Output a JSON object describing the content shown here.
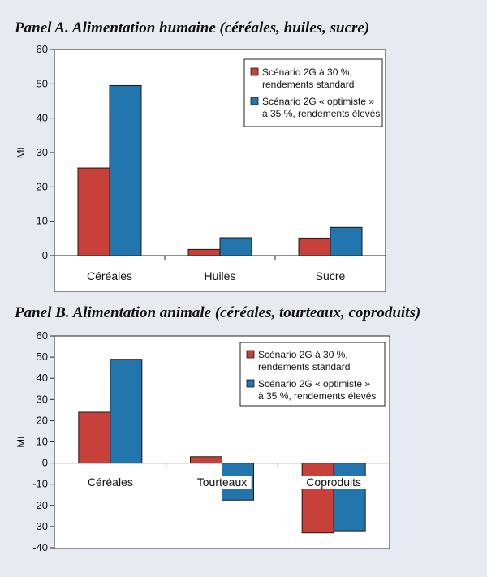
{
  "colors": {
    "series1": "#c8403a",
    "series2": "#2376ad",
    "background": "#e7eaf1"
  },
  "panels": [
    {
      "title": "Panel A. Alimentation humaine (céréales, huiles, sucre)",
      "chart_data": {
        "type": "bar",
        "categories": [
          "Céréales",
          "Huiles",
          "Sucre"
        ],
        "series": [
          {
            "name": "Scénario 2G à 30 %, rendements standard",
            "values": [
              25.5,
              1.8,
              5.1
            ]
          },
          {
            "name": "Scénario 2G « optimiste » à 35 %, rendements élevés",
            "values": [
              49.5,
              5.2,
              8.2
            ]
          }
        ],
        "ylabel": "Mt",
        "ylim": [
          0,
          60
        ],
        "yticks": [
          0,
          10,
          20,
          30,
          40,
          50,
          60
        ],
        "legend": {
          "position": "top-right",
          "lines": [
            [
              "Scénario 2G à 30 %,",
              "rendements standard"
            ],
            [
              "Scénario 2G « optimiste »",
              "à 35 %, rendements élevés"
            ]
          ]
        }
      }
    },
    {
      "title": "Panel B. Alimentation animale (céréales, tourteaux, coproduits)",
      "chart_data": {
        "type": "bar",
        "categories": [
          "Céréales",
          "Tourteaux",
          "Coproduits"
        ],
        "series": [
          {
            "name": "Scénario 2G à 30 %, rendements standard",
            "values": [
              24,
              3,
              -33
            ]
          },
          {
            "name": "Scénario 2G « optimiste » à 35 %, rendements élevés",
            "values": [
              49,
              -17.5,
              -32
            ]
          }
        ],
        "ylabel": "Mt",
        "ylim": [
          -40,
          60
        ],
        "yticks": [
          -40,
          -30,
          -20,
          -10,
          0,
          10,
          20,
          30,
          40,
          50,
          60
        ],
        "legend": {
          "position": "top-right",
          "lines": [
            [
              "Scénario 2G à 30 %,",
              "rendements standard"
            ],
            [
              "Scénario 2G « optimiste »",
              "à 35 %, rendements élevés"
            ]
          ]
        }
      }
    }
  ]
}
